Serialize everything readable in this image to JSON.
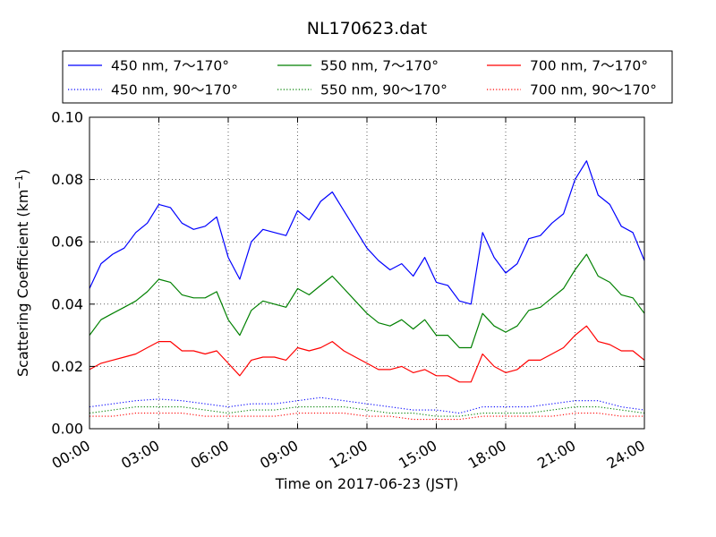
{
  "chart_data": {
    "type": "line",
    "title": "NL170623.dat",
    "xlabel": "Time on 2017-06-23 (JST)",
    "ylabel": "Scattering Coefficient (km",
    "ylabel_sup": "−1",
    "ylabel_close": ")",
    "xlim": [
      "00:00",
      "24:00"
    ],
    "ylim": [
      0,
      0.1
    ],
    "grid": true,
    "legend_position": "top, outside plot",
    "x_ticks": [
      "00:00",
      "03:00",
      "06:00",
      "09:00",
      "12:00",
      "15:00",
      "18:00",
      "21:00",
      "24:00"
    ],
    "y_ticks": [
      "0.00",
      "0.02",
      "0.04",
      "0.06",
      "0.08",
      "0.10"
    ],
    "series": [
      {
        "name": "450 nm, 7～170°",
        "color": "#0000ff",
        "style": "solid",
        "x": [
          "00:00",
          "00:30",
          "01:00",
          "01:30",
          "02:00",
          "02:30",
          "03:00",
          "03:30",
          "04:00",
          "04:30",
          "05:00",
          "05:30",
          "06:00",
          "06:30",
          "07:00",
          "07:30",
          "08:00",
          "08:30",
          "09:00",
          "09:30",
          "10:00",
          "10:30",
          "11:00",
          "11:30",
          "12:00",
          "12:30",
          "13:00",
          "13:30",
          "14:00",
          "14:30",
          "15:00",
          "15:30",
          "16:00",
          "16:30",
          "17:00",
          "17:30",
          "18:00",
          "18:30",
          "19:00",
          "19:30",
          "20:00",
          "20:30",
          "21:00",
          "21:30",
          "22:00",
          "22:30",
          "23:00",
          "23:30",
          "24:00"
        ],
        "values": [
          0.045,
          0.053,
          0.056,
          0.058,
          0.063,
          0.066,
          0.072,
          0.071,
          0.066,
          0.064,
          0.065,
          0.068,
          0.055,
          0.048,
          0.06,
          0.064,
          0.063,
          0.062,
          0.07,
          0.067,
          0.073,
          0.076,
          0.07,
          0.064,
          0.058,
          0.054,
          0.051,
          0.053,
          0.049,
          0.055,
          0.047,
          0.046,
          0.041,
          0.04,
          0.063,
          0.055,
          0.05,
          0.053,
          0.061,
          0.062,
          0.066,
          0.069,
          0.08,
          0.086,
          0.075,
          0.072,
          0.065,
          0.063,
          0.054
        ]
      },
      {
        "name": "550 nm, 7～170°",
        "color": "#008000",
        "style": "solid",
        "x": [
          "00:00",
          "00:30",
          "01:00",
          "01:30",
          "02:00",
          "02:30",
          "03:00",
          "03:30",
          "04:00",
          "04:30",
          "05:00",
          "05:30",
          "06:00",
          "06:30",
          "07:00",
          "07:30",
          "08:00",
          "08:30",
          "09:00",
          "09:30",
          "10:00",
          "10:30",
          "11:00",
          "11:30",
          "12:00",
          "12:30",
          "13:00",
          "13:30",
          "14:00",
          "14:30",
          "15:00",
          "15:30",
          "16:00",
          "16:30",
          "17:00",
          "17:30",
          "18:00",
          "18:30",
          "19:00",
          "19:30",
          "20:00",
          "20:30",
          "21:00",
          "21:30",
          "22:00",
          "22:30",
          "23:00",
          "23:30",
          "24:00"
        ],
        "values": [
          0.03,
          0.035,
          0.037,
          0.039,
          0.041,
          0.044,
          0.048,
          0.047,
          0.043,
          0.042,
          0.042,
          0.044,
          0.035,
          0.03,
          0.038,
          0.041,
          0.04,
          0.039,
          0.045,
          0.043,
          0.046,
          0.049,
          0.045,
          0.041,
          0.037,
          0.034,
          0.033,
          0.035,
          0.032,
          0.035,
          0.03,
          0.03,
          0.026,
          0.026,
          0.037,
          0.033,
          0.031,
          0.033,
          0.038,
          0.039,
          0.042,
          0.045,
          0.051,
          0.056,
          0.049,
          0.047,
          0.043,
          0.042,
          0.037
        ]
      },
      {
        "name": "700 nm, 7～170°",
        "color": "#ff0000",
        "style": "solid",
        "x": [
          "00:00",
          "00:30",
          "01:00",
          "01:30",
          "02:00",
          "02:30",
          "03:00",
          "03:30",
          "04:00",
          "04:30",
          "05:00",
          "05:30",
          "06:00",
          "06:30",
          "07:00",
          "07:30",
          "08:00",
          "08:30",
          "09:00",
          "09:30",
          "10:00",
          "10:30",
          "11:00",
          "11:30",
          "12:00",
          "12:30",
          "13:00",
          "13:30",
          "14:00",
          "14:30",
          "15:00",
          "15:30",
          "16:00",
          "16:30",
          "17:00",
          "17:30",
          "18:00",
          "18:30",
          "19:00",
          "19:30",
          "20:00",
          "20:30",
          "21:00",
          "21:30",
          "22:00",
          "22:30",
          "23:00",
          "23:30",
          "24:00"
        ],
        "values": [
          0.019,
          0.021,
          0.022,
          0.023,
          0.024,
          0.026,
          0.028,
          0.028,
          0.025,
          0.025,
          0.024,
          0.025,
          0.021,
          0.017,
          0.022,
          0.023,
          0.023,
          0.022,
          0.026,
          0.025,
          0.026,
          0.028,
          0.025,
          0.023,
          0.021,
          0.019,
          0.019,
          0.02,
          0.018,
          0.019,
          0.017,
          0.017,
          0.015,
          0.015,
          0.024,
          0.02,
          0.018,
          0.019,
          0.022,
          0.022,
          0.024,
          0.026,
          0.03,
          0.033,
          0.028,
          0.027,
          0.025,
          0.025,
          0.022
        ]
      },
      {
        "name": "450 nm, 90～170°",
        "color": "#0000ff",
        "style": "dotted",
        "x": [
          "00:00",
          "01:00",
          "02:00",
          "03:00",
          "04:00",
          "05:00",
          "06:00",
          "07:00",
          "08:00",
          "09:00",
          "10:00",
          "11:00",
          "12:00",
          "13:00",
          "14:00",
          "15:00",
          "16:00",
          "17:00",
          "18:00",
          "19:00",
          "20:00",
          "21:00",
          "22:00",
          "23:00",
          "24:00"
        ],
        "values": [
          0.007,
          0.008,
          0.009,
          0.0095,
          0.009,
          0.008,
          0.007,
          0.008,
          0.008,
          0.009,
          0.01,
          0.009,
          0.008,
          0.007,
          0.006,
          0.006,
          0.005,
          0.007,
          0.007,
          0.007,
          0.008,
          0.009,
          0.009,
          0.007,
          0.006
        ]
      },
      {
        "name": "550 nm, 90～170°",
        "color": "#008000",
        "style": "dotted",
        "x": [
          "00:00",
          "01:00",
          "02:00",
          "03:00",
          "04:00",
          "05:00",
          "06:00",
          "07:00",
          "08:00",
          "09:00",
          "10:00",
          "11:00",
          "12:00",
          "13:00",
          "14:00",
          "15:00",
          "16:00",
          "17:00",
          "18:00",
          "19:00",
          "20:00",
          "21:00",
          "22:00",
          "23:00",
          "24:00"
        ],
        "values": [
          0.005,
          0.006,
          0.007,
          0.007,
          0.007,
          0.006,
          0.005,
          0.006,
          0.006,
          0.007,
          0.007,
          0.007,
          0.006,
          0.005,
          0.005,
          0.004,
          0.004,
          0.005,
          0.005,
          0.005,
          0.006,
          0.007,
          0.007,
          0.006,
          0.005
        ]
      },
      {
        "name": "700 nm, 90～170°",
        "color": "#ff0000",
        "style": "dotted",
        "x": [
          "00:00",
          "01:00",
          "02:00",
          "03:00",
          "04:00",
          "05:00",
          "06:00",
          "07:00",
          "08:00",
          "09:00",
          "10:00",
          "11:00",
          "12:00",
          "13:00",
          "14:00",
          "15:00",
          "16:00",
          "17:00",
          "18:00",
          "19:00",
          "20:00",
          "21:00",
          "22:00",
          "23:00",
          "24:00"
        ],
        "values": [
          0.004,
          0.004,
          0.005,
          0.005,
          0.005,
          0.004,
          0.004,
          0.004,
          0.004,
          0.005,
          0.005,
          0.005,
          0.004,
          0.004,
          0.003,
          0.003,
          0.003,
          0.004,
          0.004,
          0.004,
          0.004,
          0.005,
          0.005,
          0.004,
          0.004
        ]
      }
    ]
  }
}
